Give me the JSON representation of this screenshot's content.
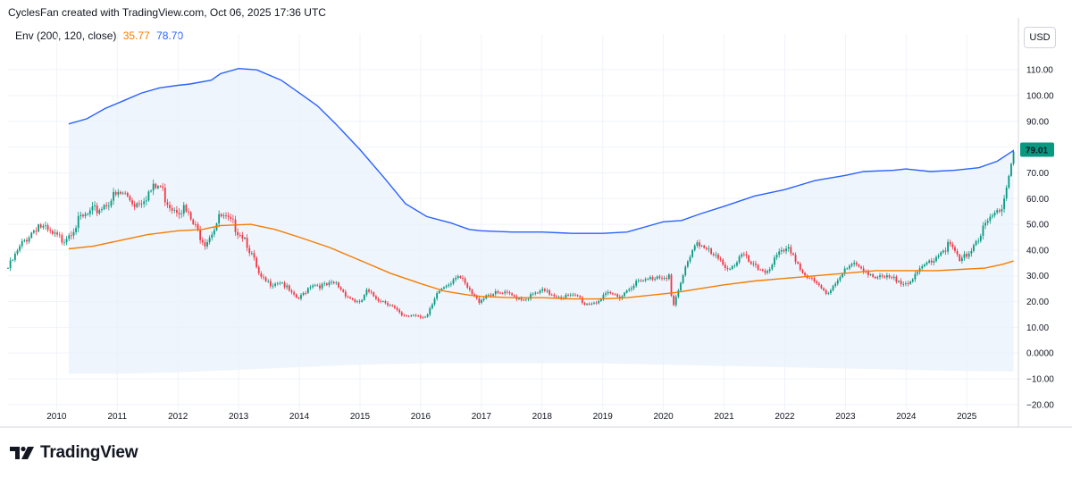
{
  "header": {
    "text": "CyclesFan created with TradingView.com, Oct 06, 2025 17:36 UTC"
  },
  "legend": {
    "label": "Env (200, 120, close)",
    "value_lower": "35.77",
    "value_upper": "78.70"
  },
  "currency": {
    "label": "USD"
  },
  "last_price": {
    "label": "79.01",
    "value": 79.01,
    "color": "#089981"
  },
  "branding": {
    "name": "TradingView"
  },
  "colors": {
    "upper_band": "#2962ff",
    "basis": "#f57c00",
    "band_fill": "#e9f2fb",
    "candle_up": "#089981",
    "candle_down": "#f23645",
    "grid": "#f0f3fa"
  },
  "chart_data": {
    "type": "candlestick",
    "title": "",
    "indicator": "Envelope (200, 120, close)",
    "xlabel": "",
    "ylabel": "USD",
    "xlim": [
      2009.2,
      2025.85
    ],
    "ylim": [
      -22.5,
      117
    ],
    "x_ticks": [
      {
        "label": "2010",
        "value": 2010
      },
      {
        "label": "2011",
        "value": 2011
      },
      {
        "label": "2012",
        "value": 2012
      },
      {
        "label": "2013",
        "value": 2013
      },
      {
        "label": "2014",
        "value": 2014
      },
      {
        "label": "2015",
        "value": 2015
      },
      {
        "label": "2016",
        "value": 2016
      },
      {
        "label": "2017",
        "value": 2017
      },
      {
        "label": "2018",
        "value": 2018
      },
      {
        "label": "2019",
        "value": 2019
      },
      {
        "label": "2020",
        "value": 2020
      },
      {
        "label": "2021",
        "value": 2021
      },
      {
        "label": "2022",
        "value": 2022
      },
      {
        "label": "2023",
        "value": 2023
      },
      {
        "label": "2024",
        "value": 2024
      },
      {
        "label": "2025",
        "value": 2025
      }
    ],
    "y_ticks": [
      {
        "label": "110.00",
        "value": 110
      },
      {
        "label": "100.00",
        "value": 100
      },
      {
        "label": "90.00",
        "value": 90
      },
      {
        "label": "80.00",
        "value": 80
      },
      {
        "label": "70.00",
        "value": 70
      },
      {
        "label": "60.00",
        "value": 60
      },
      {
        "label": "50.00",
        "value": 50
      },
      {
        "label": "40.00",
        "value": 40
      },
      {
        "label": "30.00",
        "value": 30
      },
      {
        "label": "20.00",
        "value": 20
      },
      {
        "label": "10.00",
        "value": 10
      },
      {
        "label": "0.0000",
        "value": 0
      },
      {
        "label": "−10.00",
        "value": -10
      },
      {
        "label": "−20.00",
        "value": -20
      }
    ],
    "price_path": [
      [
        2009.2,
        33
      ],
      [
        2009.45,
        43
      ],
      [
        2009.7,
        50
      ],
      [
        2009.9,
        46
      ],
      [
        2010.1,
        44
      ],
      [
        2010.4,
        52
      ],
      [
        2010.7,
        56
      ],
      [
        2010.9,
        60
      ],
      [
        2011.1,
        62
      ],
      [
        2011.3,
        58
      ],
      [
        2011.5,
        62
      ],
      [
        2011.7,
        65
      ],
      [
        2011.8,
        60
      ],
      [
        2011.9,
        57
      ],
      [
        2012.1,
        56
      ],
      [
        2012.3,
        48
      ],
      [
        2012.45,
        43
      ],
      [
        2012.7,
        53
      ],
      [
        2012.9,
        50
      ],
      [
        2013.1,
        45
      ],
      [
        2013.25,
        36
      ],
      [
        2013.35,
        29
      ],
      [
        2013.5,
        27
      ],
      [
        2013.7,
        28
      ],
      [
        2013.9,
        22
      ],
      [
        2014.0,
        21
      ],
      [
        2014.2,
        27
      ],
      [
        2014.4,
        26
      ],
      [
        2014.6,
        27
      ],
      [
        2014.8,
        22
      ],
      [
        2015.0,
        19
      ],
      [
        2015.1,
        24
      ],
      [
        2015.3,
        21
      ],
      [
        2015.5,
        19
      ],
      [
        2015.7,
        14
      ],
      [
        2015.9,
        15
      ],
      [
        2016.1,
        14
      ],
      [
        2016.3,
        24
      ],
      [
        2016.5,
        28
      ],
      [
        2016.6,
        31
      ],
      [
        2016.8,
        24
      ],
      [
        2016.95,
        20
      ],
      [
        2017.1,
        23
      ],
      [
        2017.4,
        23
      ],
      [
        2017.7,
        21
      ],
      [
        2018.0,
        24
      ],
      [
        2018.3,
        22
      ],
      [
        2018.6,
        22
      ],
      [
        2018.7,
        19
      ],
      [
        2018.9,
        20
      ],
      [
        2019.1,
        23
      ],
      [
        2019.3,
        22
      ],
      [
        2019.5,
        27
      ],
      [
        2019.7,
        28
      ],
      [
        2019.9,
        30
      ],
      [
        2020.1,
        30
      ],
      [
        2020.15,
        17
      ],
      [
        2020.25,
        24
      ],
      [
        2020.4,
        36
      ],
      [
        2020.55,
        44
      ],
      [
        2020.7,
        40
      ],
      [
        2020.9,
        36
      ],
      [
        2021.1,
        33
      ],
      [
        2021.3,
        38
      ],
      [
        2021.5,
        33
      ],
      [
        2021.7,
        32
      ],
      [
        2021.9,
        38
      ],
      [
        2022.1,
        40
      ],
      [
        2022.3,
        31
      ],
      [
        2022.5,
        27
      ],
      [
        2022.7,
        23
      ],
      [
        2022.9,
        30
      ],
      [
        2023.1,
        34
      ],
      [
        2023.3,
        33
      ],
      [
        2023.5,
        29
      ],
      [
        2023.7,
        29
      ],
      [
        2023.9,
        28
      ],
      [
        2024.1,
        28
      ],
      [
        2024.3,
        34
      ],
      [
        2024.5,
        38
      ],
      [
        2024.7,
        42
      ],
      [
        2024.8,
        39
      ],
      [
        2024.9,
        35
      ],
      [
        2025.1,
        42
      ],
      [
        2025.25,
        47
      ],
      [
        2025.4,
        52
      ],
      [
        2025.55,
        56
      ],
      [
        2025.65,
        65
      ],
      [
        2025.72,
        72
      ],
      [
        2025.77,
        79
      ]
    ],
    "series": [
      {
        "name": "Upper band",
        "values": [
          [
            2010.2,
            89
          ],
          [
            2010.5,
            91
          ],
          [
            2010.8,
            95
          ],
          [
            2011.1,
            98
          ],
          [
            2011.4,
            101
          ],
          [
            2011.7,
            103
          ],
          [
            2012.0,
            104
          ],
          [
            2012.2,
            104.5
          ],
          [
            2012.55,
            106
          ],
          [
            2012.7,
            108.5
          ],
          [
            2013.0,
            110.5
          ],
          [
            2013.3,
            110
          ],
          [
            2013.7,
            106
          ],
          [
            2014.0,
            101
          ],
          [
            2014.3,
            96
          ],
          [
            2014.6,
            89
          ],
          [
            2015.0,
            79
          ],
          [
            2015.4,
            68
          ],
          [
            2015.75,
            58
          ],
          [
            2016.1,
            53
          ],
          [
            2016.5,
            50.5
          ],
          [
            2016.8,
            48
          ],
          [
            2017.0,
            47.5
          ],
          [
            2017.5,
            47
          ],
          [
            2018.0,
            47
          ],
          [
            2018.5,
            46.5
          ],
          [
            2019.0,
            46.5
          ],
          [
            2019.4,
            47
          ],
          [
            2019.7,
            49
          ],
          [
            2020.0,
            51
          ],
          [
            2020.3,
            51.5
          ],
          [
            2020.6,
            54
          ],
          [
            2021.0,
            57
          ],
          [
            2021.5,
            61
          ],
          [
            2022.0,
            63.5
          ],
          [
            2022.5,
            67
          ],
          [
            2023.0,
            69
          ],
          [
            2023.3,
            70.5
          ],
          [
            2023.8,
            71
          ],
          [
            2024.0,
            71.5
          ],
          [
            2024.4,
            70.5
          ],
          [
            2024.8,
            71
          ],
          [
            2025.2,
            72
          ],
          [
            2025.5,
            74.5
          ],
          [
            2025.77,
            78.7
          ]
        ]
      },
      {
        "name": "Basis",
        "values": [
          [
            2010.2,
            40.5
          ],
          [
            2010.6,
            41.5
          ],
          [
            2011.0,
            43.5
          ],
          [
            2011.5,
            46
          ],
          [
            2012.0,
            47.5
          ],
          [
            2012.4,
            48
          ],
          [
            2012.7,
            49.5
          ],
          [
            2013.2,
            50
          ],
          [
            2013.6,
            48
          ],
          [
            2014.0,
            45
          ],
          [
            2014.5,
            41
          ],
          [
            2015.0,
            36
          ],
          [
            2015.5,
            31
          ],
          [
            2016.0,
            27
          ],
          [
            2016.4,
            24
          ],
          [
            2016.8,
            22.5
          ],
          [
            2017.0,
            22
          ],
          [
            2017.5,
            21.5
          ],
          [
            2018.0,
            21.5
          ],
          [
            2018.5,
            21
          ],
          [
            2019.0,
            21
          ],
          [
            2019.4,
            21.5
          ],
          [
            2019.8,
            22.5
          ],
          [
            2020.2,
            23.5
          ],
          [
            2020.6,
            25
          ],
          [
            2021.0,
            26.5
          ],
          [
            2021.5,
            28
          ],
          [
            2022.0,
            29
          ],
          [
            2022.5,
            30
          ],
          [
            2023.0,
            31
          ],
          [
            2023.5,
            32
          ],
          [
            2024.0,
            32
          ],
          [
            2024.5,
            32
          ],
          [
            2024.9,
            32.5
          ],
          [
            2025.3,
            33
          ],
          [
            2025.6,
            34.5
          ],
          [
            2025.77,
            35.77
          ]
        ]
      },
      {
        "name": "Lower band",
        "values": [
          [
            2010.2,
            -8
          ],
          [
            2011.0,
            -8
          ],
          [
            2012.0,
            -7.5
          ],
          [
            2013.0,
            -6.5
          ],
          [
            2014.0,
            -5.5
          ],
          [
            2015.0,
            -4.5
          ],
          [
            2016.0,
            -4
          ],
          [
            2017.0,
            -4
          ],
          [
            2018.0,
            -4
          ],
          [
            2019.0,
            -4
          ],
          [
            2020.0,
            -4.5
          ],
          [
            2021.0,
            -5
          ],
          [
            2022.0,
            -5.5
          ],
          [
            2023.0,
            -6
          ],
          [
            2024.0,
            -6.5
          ],
          [
            2025.0,
            -7
          ],
          [
            2025.77,
            -7.2
          ]
        ]
      }
    ]
  }
}
